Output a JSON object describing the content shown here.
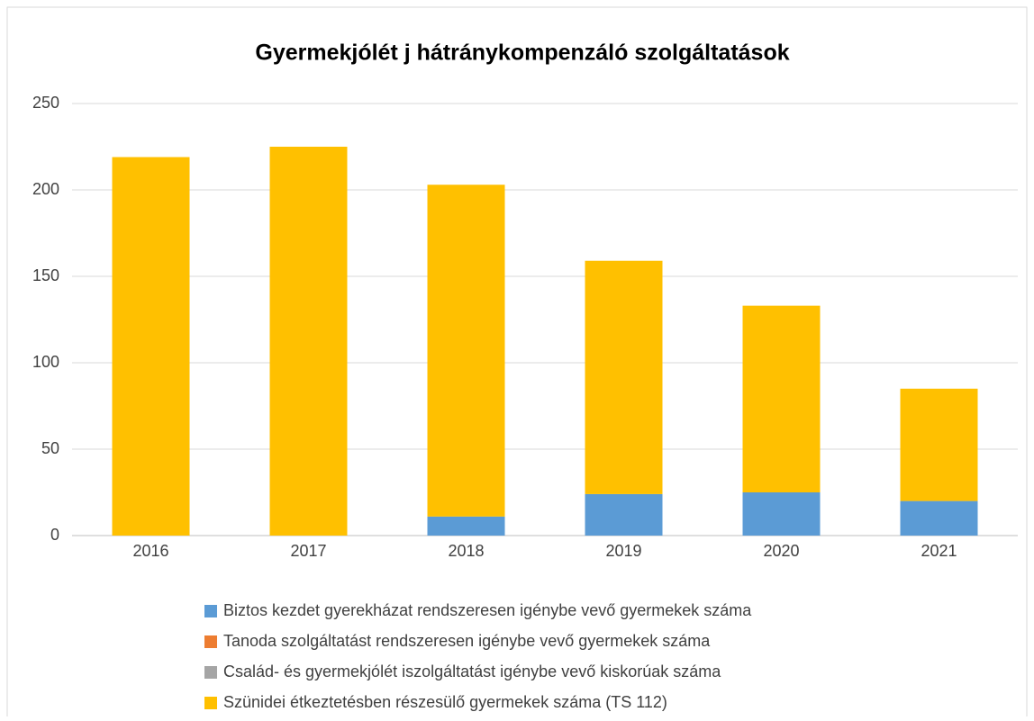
{
  "chart_data": {
    "type": "stacked_bar",
    "title": "Gyermekjólét j hátránykompenzáló szolgáltatások",
    "categories": [
      "2016",
      "2017",
      "2018",
      "2019",
      "2020",
      "2021"
    ],
    "series": [
      {
        "name": "Biztos kezdet gyerekházat rendszeresen igénybe vevő gyermekek száma",
        "color": "#5b9bd5",
        "values": [
          0,
          0,
          11,
          24,
          25,
          20
        ]
      },
      {
        "name": "Tanoda szolgáltatást rendszeresen igénybe vevő gyermekek száma",
        "color": "#ed7d31",
        "values": [
          0,
          0,
          0,
          0,
          0,
          0
        ]
      },
      {
        "name": "Család- és gyermekjólét iszolgáltatást igénybe vevő kiskorúak száma",
        "color": "#a5a5a5",
        "values": [
          0,
          0,
          0,
          0,
          0,
          0
        ]
      },
      {
        "name": "Szünidei étkeztetésben részesülő gyermekek száma (TS 112)",
        "color": "#ffc000",
        "values": [
          219,
          225,
          192,
          135,
          108,
          65
        ]
      }
    ],
    "ylim": [
      0,
      250
    ],
    "yticks": [
      0,
      50,
      100,
      150,
      200,
      250
    ],
    "grid": true,
    "legend": "bottom"
  }
}
